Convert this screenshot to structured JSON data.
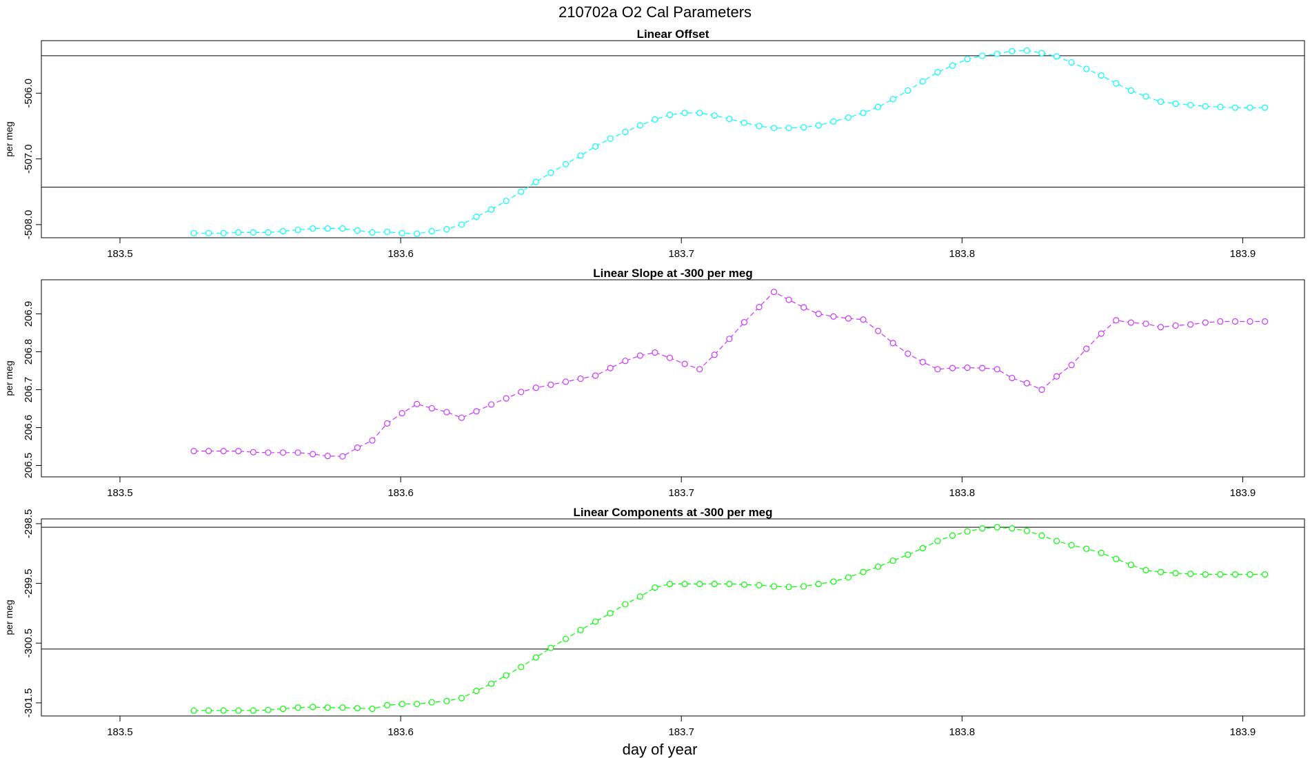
{
  "title": "210702a   O2 Cal Parameters",
  "xlabel": "day of year",
  "chart_data": [
    {
      "type": "line",
      "title": "Linear Offset",
      "ylabel": "per meg",
      "color": "#00FFFF",
      "xlim": [
        183.472,
        183.922
      ],
      "ylim": [
        -508.2,
        -505.2
      ],
      "yticks": [
        -506.0,
        -507.0,
        -508.0
      ],
      "ytick_labels": [
        "-506.0",
        "-507.0",
        "-508.0"
      ],
      "xticks": [
        183.5,
        183.6,
        183.7,
        183.8,
        183.9
      ],
      "xtick_labels": [
        "183.5",
        "183.6",
        "183.7",
        "183.8",
        "183.9"
      ],
      "hlines": [
        -505.43,
        -507.43
      ],
      "series": [
        {
          "name": "Linear Offset",
          "x": [
            183.5263,
            183.5316,
            183.5369,
            183.5422,
            183.5475,
            183.5528,
            183.5581,
            183.5634,
            183.5687,
            183.574,
            183.5793,
            183.5846,
            183.5899,
            183.5952,
            183.6005,
            183.6058,
            183.6111,
            183.6164,
            183.6217,
            183.627,
            183.6323,
            183.6376,
            183.6429,
            183.6482,
            183.6535,
            183.6588,
            183.6641,
            183.6694,
            183.6747,
            183.68,
            183.6853,
            183.6906,
            183.6959,
            183.7012,
            183.7065,
            183.7118,
            183.7171,
            183.7224,
            183.7277,
            183.733,
            183.7383,
            183.7436,
            183.7489,
            183.7542,
            183.7595,
            183.7648,
            183.7701,
            183.7754,
            183.7807,
            183.786,
            183.7913,
            183.7966,
            183.8019,
            183.8072,
            183.8125,
            183.8178,
            183.8231,
            183.8284,
            183.8337,
            183.839,
            183.8443,
            183.8496,
            183.8549,
            183.8602,
            183.8655,
            183.8708,
            183.8761,
            183.8814,
            183.8867,
            183.892,
            183.8973,
            183.9026,
            183.9079
          ],
          "y": [
            -508.13,
            -508.13,
            -508.13,
            -508.12,
            -508.12,
            -508.12,
            -508.1,
            -508.08,
            -508.06,
            -508.06,
            -508.06,
            -508.09,
            -508.12,
            -508.11,
            -508.13,
            -508.14,
            -508.1,
            -508.07,
            -508.0,
            -507.88,
            -507.77,
            -507.64,
            -507.5,
            -507.35,
            -507.21,
            -507.08,
            -506.95,
            -506.81,
            -506.69,
            -506.59,
            -506.49,
            -506.4,
            -506.33,
            -506.3,
            -506.3,
            -506.34,
            -506.39,
            -506.45,
            -506.5,
            -506.53,
            -506.53,
            -506.52,
            -506.49,
            -506.43,
            -506.37,
            -506.3,
            -506.21,
            -506.09,
            -505.96,
            -505.82,
            -505.68,
            -505.58,
            -505.48,
            -505.43,
            -505.4,
            -505.36,
            -505.35,
            -505.39,
            -505.44,
            -505.53,
            -505.63,
            -505.73,
            -505.85,
            -505.96,
            -506.05,
            -506.13,
            -506.16,
            -506.18,
            -506.2,
            -506.21,
            -506.22,
            -506.22,
            -506.22
          ]
        }
      ]
    },
    {
      "type": "line",
      "title": "Linear Slope at -300 per meg",
      "ylabel": "per meg",
      "color": "#CC33FF",
      "xlim": [
        183.472,
        183.922
      ],
      "ylim": [
        206.47,
        206.99
      ],
      "yticks": [
        206.5,
        206.6,
        206.7,
        206.8,
        206.9
      ],
      "ytick_labels": [
        "206.5",
        "206.6",
        "206.7",
        "206.8",
        "206.9"
      ],
      "xticks": [
        183.5,
        183.6,
        183.7,
        183.8,
        183.9
      ],
      "xtick_labels": [
        "183.5",
        "183.6",
        "183.7",
        "183.8",
        "183.9"
      ],
      "hlines": [],
      "series": [
        {
          "name": "Linear Slope",
          "x": [
            183.5263,
            183.5316,
            183.5369,
            183.5422,
            183.5475,
            183.5528,
            183.5581,
            183.5634,
            183.5687,
            183.574,
            183.5793,
            183.5846,
            183.5899,
            183.5952,
            183.6005,
            183.6058,
            183.6111,
            183.6164,
            183.6217,
            183.627,
            183.6323,
            183.6376,
            183.6429,
            183.6482,
            183.6535,
            183.6588,
            183.6641,
            183.6694,
            183.6747,
            183.68,
            183.6853,
            183.6906,
            183.6959,
            183.7012,
            183.7065,
            183.7118,
            183.7171,
            183.7224,
            183.7277,
            183.733,
            183.7383,
            183.7436,
            183.7489,
            183.7542,
            183.7595,
            183.7648,
            183.7701,
            183.7754,
            183.7807,
            183.786,
            183.7913,
            183.7966,
            183.8019,
            183.8072,
            183.8125,
            183.8178,
            183.8231,
            183.8284,
            183.8337,
            183.839,
            183.8443,
            183.8496,
            183.8549,
            183.8602,
            183.8655,
            183.8708,
            183.8761,
            183.8814,
            183.8867,
            183.892,
            183.8973,
            183.9026,
            183.9079
          ],
          "y": [
            206.538,
            206.538,
            206.538,
            206.538,
            206.535,
            206.534,
            206.534,
            206.534,
            206.53,
            206.525,
            206.524,
            206.547,
            206.566,
            206.611,
            206.638,
            206.662,
            206.651,
            206.641,
            206.626,
            206.643,
            206.661,
            206.677,
            206.694,
            206.705,
            206.713,
            206.721,
            206.729,
            206.737,
            206.757,
            206.776,
            206.79,
            206.798,
            206.784,
            206.768,
            206.754,
            206.792,
            206.834,
            206.878,
            206.918,
            206.958,
            206.937,
            206.917,
            206.9,
            206.893,
            206.888,
            206.885,
            206.855,
            206.823,
            206.795,
            206.773,
            206.754,
            206.757,
            206.758,
            206.757,
            206.754,
            206.731,
            206.717,
            206.7,
            206.735,
            206.765,
            206.808,
            206.848,
            206.883,
            206.877,
            206.874,
            206.865,
            206.869,
            206.872,
            206.877,
            206.88,
            206.88,
            206.88,
            206.88
          ]
        }
      ]
    },
    {
      "type": "line",
      "title": "Linear Components at -300 per meg",
      "ylabel": "per meg",
      "color": "#00FF00",
      "xlim": [
        183.472,
        183.922
      ],
      "ylim": [
        -301.72,
        -298.42
      ],
      "yticks": [
        -298.5,
        -299.5,
        -300.5,
        -301.5
      ],
      "ytick_labels": [
        "-298.5",
        "-299.5",
        "-300.5",
        "-301.5"
      ],
      "xticks": [
        183.5,
        183.6,
        183.7,
        183.8,
        183.9
      ],
      "xtick_labels": [
        "183.5",
        "183.6",
        "183.7",
        "183.8",
        "183.9"
      ],
      "hlines": [
        -298.56,
        -300.6
      ],
      "series": [
        {
          "name": "Linear Components",
          "x": [
            183.5263,
            183.5316,
            183.5369,
            183.5422,
            183.5475,
            183.5528,
            183.5581,
            183.5634,
            183.5687,
            183.574,
            183.5793,
            183.5846,
            183.5899,
            183.5952,
            183.6005,
            183.6058,
            183.6111,
            183.6164,
            183.6217,
            183.627,
            183.6323,
            183.6376,
            183.6429,
            183.6482,
            183.6535,
            183.6588,
            183.6641,
            183.6694,
            183.6747,
            183.68,
            183.6853,
            183.6906,
            183.6959,
            183.7012,
            183.7065,
            183.7118,
            183.7171,
            183.7224,
            183.7277,
            183.733,
            183.7383,
            183.7436,
            183.7489,
            183.7542,
            183.7595,
            183.7648,
            183.7701,
            183.7754,
            183.7807,
            183.786,
            183.7913,
            183.7966,
            183.8019,
            183.8072,
            183.8125,
            183.8178,
            183.8231,
            183.8284,
            183.8337,
            183.839,
            183.8443,
            183.8496,
            183.8549,
            183.8602,
            183.8655,
            183.8708,
            183.8761,
            183.8814,
            183.8867,
            183.892,
            183.8973,
            183.9026,
            183.9079
          ],
          "y": [
            -301.63,
            -301.63,
            -301.63,
            -301.63,
            -301.63,
            -301.62,
            -301.6,
            -301.58,
            -301.57,
            -301.58,
            -301.58,
            -301.59,
            -301.6,
            -301.54,
            -301.52,
            -301.52,
            -301.49,
            -301.47,
            -301.42,
            -301.3,
            -301.18,
            -301.04,
            -300.9,
            -300.74,
            -300.58,
            -300.43,
            -300.28,
            -300.14,
            -300.0,
            -299.85,
            -299.72,
            -299.57,
            -299.51,
            -299.51,
            -299.51,
            -299.51,
            -299.51,
            -299.52,
            -299.53,
            -299.55,
            -299.56,
            -299.55,
            -299.51,
            -299.47,
            -299.4,
            -299.31,
            -299.22,
            -299.12,
            -299.02,
            -298.91,
            -298.79,
            -298.7,
            -298.63,
            -298.58,
            -298.56,
            -298.58,
            -298.62,
            -298.7,
            -298.79,
            -298.86,
            -298.92,
            -298.99,
            -299.09,
            -299.19,
            -299.28,
            -299.31,
            -299.33,
            -299.34,
            -299.35,
            -299.35,
            -299.35,
            -299.35,
            -299.35
          ]
        }
      ]
    }
  ]
}
